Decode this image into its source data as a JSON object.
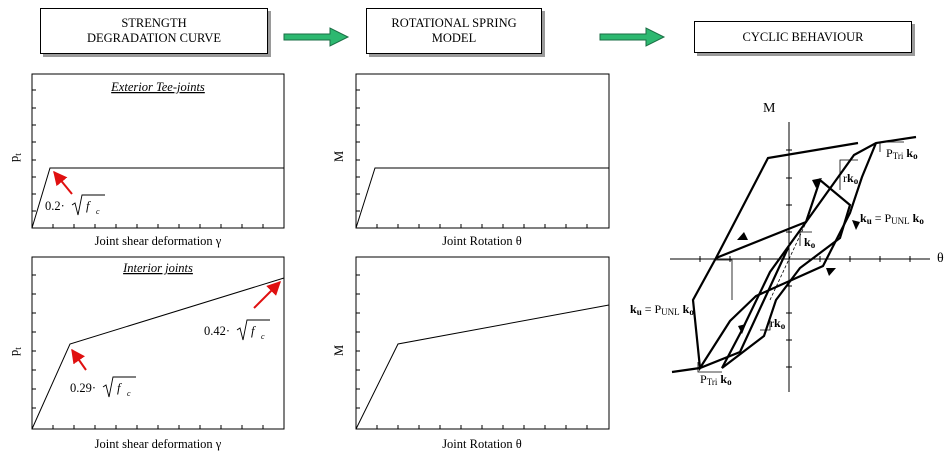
{
  "header": {
    "stage1": "STRENGTH\nDEGRADATION CURVE",
    "stage2": "ROTATIONAL SPRING\nMODEL",
    "stage3": "CYCLIC BEHAVIOUR"
  },
  "panels": {
    "exterior_curve": {
      "title": "Exterior Tee-joints",
      "ylabel": "p",
      "ylabel_sub": "t",
      "xlabel": "Joint shear deformation γ",
      "annotation_coef": "0.2·"
    },
    "exterior_spring": {
      "ylabel": "M",
      "xlabel": "Joint Rotation θ"
    },
    "interior_curve": {
      "title": "Interior joints",
      "ylabel": "p",
      "ylabel_sub": "t",
      "xlabel": "Joint shear deformation γ",
      "annotation1_coef": "0.29·",
      "annotation2_coef": "0.42·"
    },
    "interior_spring": {
      "ylabel": "M",
      "xlabel": "Joint Rotation θ"
    },
    "sqrt_f": "f",
    "sqrt_f_sub": "c"
  },
  "cyclic": {
    "axis_m": "M",
    "axis_theta": "θ",
    "ptri_p": "P",
    "ptri_sub": "Tri",
    "ko_k": "k",
    "ko_sub": "o",
    "ku_k": "k",
    "ku_sub": "u",
    "eq": " = P",
    "unl_sub": "UNL",
    "r": "r"
  },
  "colors": {
    "arrow_green": "#2db870",
    "annotation_red": "#e01010",
    "shadow": "#9a9a9a"
  }
}
